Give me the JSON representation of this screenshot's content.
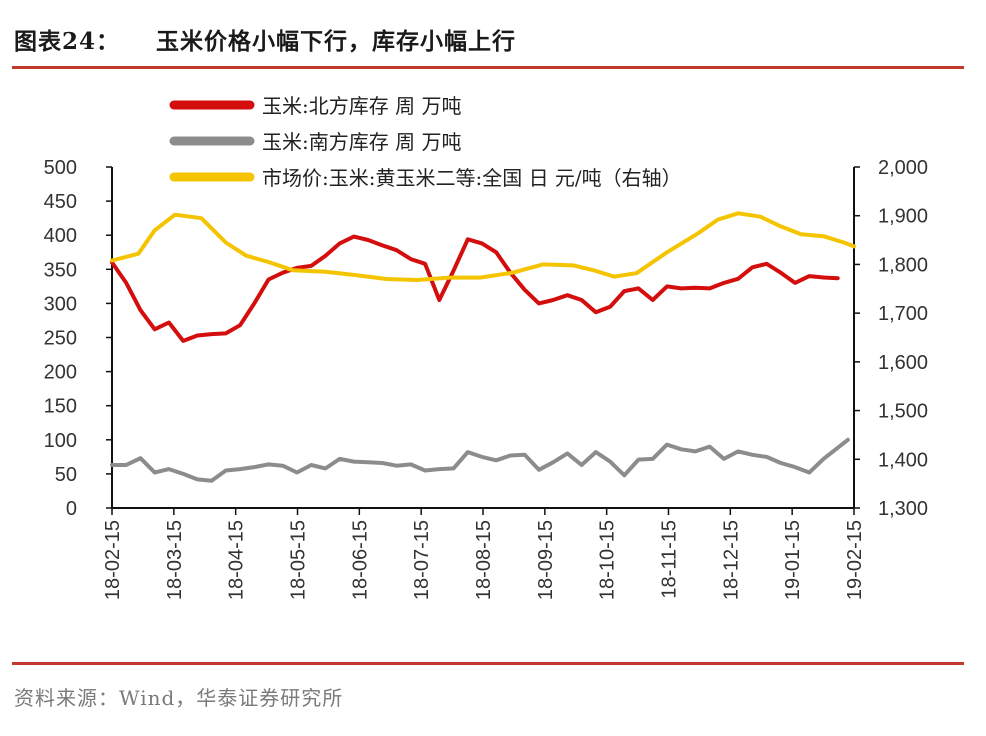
{
  "figure": {
    "title_prefix": "图表24：",
    "title": "玉米价格小幅下行，库存小幅上行",
    "source": "资料来源：Wind，华泰证券研究所"
  },
  "chart_data": {
    "type": "line",
    "x_tick_labels": [
      "18-02-15",
      "18-03-15",
      "18-04-15",
      "18-05-15",
      "18-06-15",
      "18-07-15",
      "18-08-15",
      "18-09-15",
      "18-10-15",
      "18-11-15",
      "18-12-15",
      "19-01-15",
      "19-02-15"
    ],
    "x_range": [
      "2018-02-15",
      "2019-02-15"
    ],
    "y_left": {
      "range": [
        0,
        500
      ],
      "ticks": [
        0,
        50,
        100,
        150,
        200,
        250,
        300,
        350,
        400,
        450,
        500
      ],
      "tick_labels": [
        "0",
        "50",
        "100",
        "150",
        "200",
        "250",
        "300",
        "350",
        "400",
        "450",
        "500"
      ]
    },
    "y_right": {
      "range": [
        1300,
        2000
      ],
      "ticks": [
        1300,
        1400,
        1500,
        1600,
        1700,
        1800,
        1900,
        2000
      ],
      "tick_labels": [
        "1,300",
        "1,400",
        "1,500",
        "1,600",
        "1,700",
        "1,800",
        "1,900",
        "2,000"
      ]
    },
    "legend_position": "top",
    "grid": false,
    "series": [
      {
        "name": "玉米:北方库存 周 万吨",
        "axis": "left",
        "color": "#d40d0d",
        "points": [
          [
            "2018-02-15",
            360
          ],
          [
            "2018-02-22",
            330
          ],
          [
            "2018-03-01",
            290
          ],
          [
            "2018-03-08",
            262
          ],
          [
            "2018-03-15",
            272
          ],
          [
            "2018-03-22",
            245
          ],
          [
            "2018-03-29",
            253
          ],
          [
            "2018-04-05",
            255
          ],
          [
            "2018-04-12",
            256
          ],
          [
            "2018-04-19",
            268
          ],
          [
            "2018-04-26",
            300
          ],
          [
            "2018-05-03",
            335
          ],
          [
            "2018-05-10",
            345
          ],
          [
            "2018-05-17",
            352
          ],
          [
            "2018-05-24",
            355
          ],
          [
            "2018-05-31",
            370
          ],
          [
            "2018-06-07",
            388
          ],
          [
            "2018-06-14",
            398
          ],
          [
            "2018-06-21",
            393
          ],
          [
            "2018-06-28",
            385
          ],
          [
            "2018-07-05",
            378
          ],
          [
            "2018-07-12",
            365
          ],
          [
            "2018-07-19",
            358
          ],
          [
            "2018-07-26",
            305
          ],
          [
            "2018-08-02",
            348
          ],
          [
            "2018-08-09",
            394
          ],
          [
            "2018-08-16",
            388
          ],
          [
            "2018-08-23",
            375
          ],
          [
            "2018-08-30",
            345
          ],
          [
            "2018-09-06",
            320
          ],
          [
            "2018-09-13",
            300
          ],
          [
            "2018-09-20",
            305
          ],
          [
            "2018-09-27",
            312
          ],
          [
            "2018-10-04",
            305
          ],
          [
            "2018-10-11",
            287
          ],
          [
            "2018-10-18",
            295
          ],
          [
            "2018-10-25",
            318
          ],
          [
            "2018-11-01",
            322
          ],
          [
            "2018-11-08",
            305
          ],
          [
            "2018-11-15",
            325
          ],
          [
            "2018-11-22",
            322
          ],
          [
            "2018-11-29",
            323
          ],
          [
            "2018-12-06",
            322
          ],
          [
            "2018-12-13",
            330
          ],
          [
            "2018-12-20",
            336
          ],
          [
            "2018-12-27",
            353
          ],
          [
            "2019-01-03",
            358
          ],
          [
            "2019-01-10",
            345
          ],
          [
            "2019-01-17",
            330
          ],
          [
            "2019-01-24",
            340
          ],
          [
            "2019-01-31",
            338
          ],
          [
            "2019-02-07",
            337
          ]
        ]
      },
      {
        "name": "玉米:南方库存 周 万吨",
        "axis": "left",
        "color": "#8c8c8c",
        "points": [
          [
            "2018-02-15",
            63
          ],
          [
            "2018-02-22",
            63
          ],
          [
            "2018-03-01",
            73
          ],
          [
            "2018-03-08",
            52
          ],
          [
            "2018-03-15",
            57
          ],
          [
            "2018-03-22",
            50
          ],
          [
            "2018-03-29",
            42
          ],
          [
            "2018-04-05",
            40
          ],
          [
            "2018-04-12",
            55
          ],
          [
            "2018-04-19",
            57
          ],
          [
            "2018-04-26",
            60
          ],
          [
            "2018-05-03",
            64
          ],
          [
            "2018-05-10",
            62
          ],
          [
            "2018-05-17",
            52
          ],
          [
            "2018-05-24",
            63
          ],
          [
            "2018-05-31",
            58
          ],
          [
            "2018-06-07",
            72
          ],
          [
            "2018-06-14",
            68
          ],
          [
            "2018-06-21",
            67
          ],
          [
            "2018-06-28",
            66
          ],
          [
            "2018-07-05",
            62
          ],
          [
            "2018-07-12",
            64
          ],
          [
            "2018-07-19",
            55
          ],
          [
            "2018-07-26",
            57
          ],
          [
            "2018-08-02",
            58
          ],
          [
            "2018-08-09",
            82
          ],
          [
            "2018-08-16",
            75
          ],
          [
            "2018-08-23",
            70
          ],
          [
            "2018-08-30",
            77
          ],
          [
            "2018-09-06",
            78
          ],
          [
            "2018-09-13",
            56
          ],
          [
            "2018-09-20",
            67
          ],
          [
            "2018-09-27",
            80
          ],
          [
            "2018-10-04",
            63
          ],
          [
            "2018-10-11",
            82
          ],
          [
            "2018-10-18",
            68
          ],
          [
            "2018-10-25",
            48
          ],
          [
            "2018-11-01",
            71
          ],
          [
            "2018-11-08",
            72
          ],
          [
            "2018-11-15",
            93
          ],
          [
            "2018-11-22",
            86
          ],
          [
            "2018-11-29",
            83
          ],
          [
            "2018-12-06",
            90
          ],
          [
            "2018-12-13",
            72
          ],
          [
            "2018-12-20",
            83
          ],
          [
            "2018-12-27",
            78
          ],
          [
            "2019-01-03",
            75
          ],
          [
            "2019-01-10",
            66
          ],
          [
            "2019-01-17",
            60
          ],
          [
            "2019-01-24",
            52
          ],
          [
            "2019-01-31",
            72
          ],
          [
            "2019-02-12",
            100
          ]
        ]
      },
      {
        "name": "市场价:玉米:黄玉米二等:全国 日 元/吨（右轴）",
        "axis": "right",
        "color": "#f5c400",
        "points": [
          [
            "2018-02-15",
            1808
          ],
          [
            "2018-02-28",
            1822
          ],
          [
            "2018-03-08",
            1870
          ],
          [
            "2018-03-18",
            1902
          ],
          [
            "2018-03-31",
            1895
          ],
          [
            "2018-04-12",
            1845
          ],
          [
            "2018-04-22",
            1818
          ],
          [
            "2018-05-03",
            1805
          ],
          [
            "2018-05-15",
            1788
          ],
          [
            "2018-05-31",
            1785
          ],
          [
            "2018-06-15",
            1778
          ],
          [
            "2018-06-30",
            1770
          ],
          [
            "2018-07-15",
            1768
          ],
          [
            "2018-07-31",
            1773
          ],
          [
            "2018-08-15",
            1773
          ],
          [
            "2018-08-31",
            1783
          ],
          [
            "2018-09-15",
            1800
          ],
          [
            "2018-09-30",
            1798
          ],
          [
            "2018-10-10",
            1788
          ],
          [
            "2018-10-20",
            1775
          ],
          [
            "2018-10-31",
            1782
          ],
          [
            "2018-11-15",
            1825
          ],
          [
            "2018-11-30",
            1863
          ],
          [
            "2018-12-10",
            1892
          ],
          [
            "2018-12-20",
            1905
          ],
          [
            "2018-12-31",
            1898
          ],
          [
            "2019-01-10",
            1878
          ],
          [
            "2019-01-20",
            1862
          ],
          [
            "2019-01-31",
            1858
          ],
          [
            "2019-02-10",
            1845
          ],
          [
            "2019-02-15",
            1837
          ]
        ]
      }
    ]
  }
}
